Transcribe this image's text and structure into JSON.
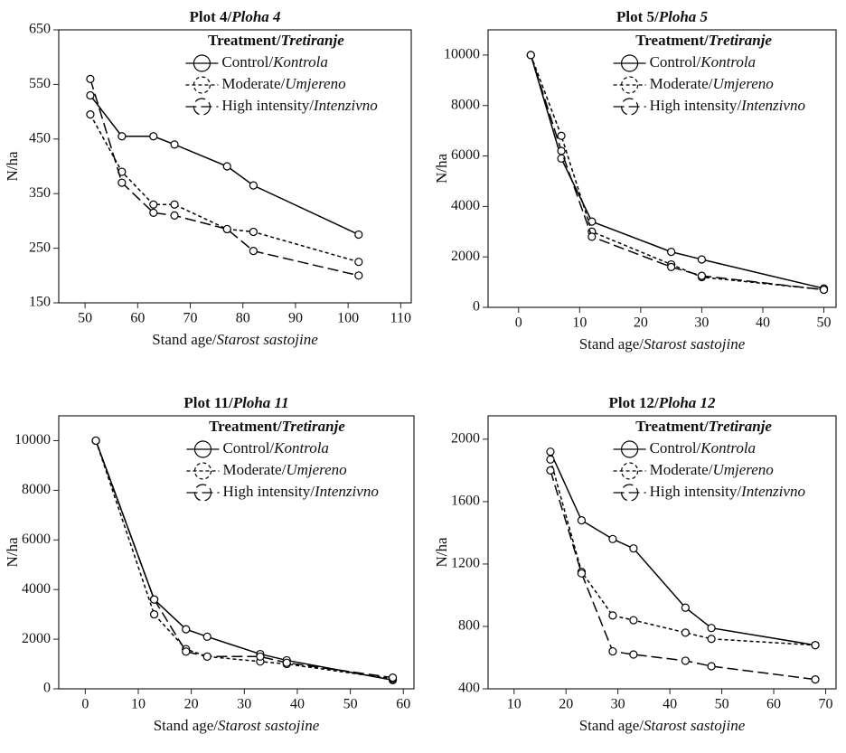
{
  "chart_data": [
    {
      "type": "line",
      "title": "Plot 4/Ploha 4",
      "x_label": "Stand age/Starost sastojine",
      "y_label": "N/ha",
      "legend_title": "Treatment/Tretiranje",
      "x": [
        51,
        57,
        63,
        67,
        77,
        82,
        102
      ],
      "series": [
        {
          "name": "Control/Kontrola",
          "color": "#000000",
          "dash": "solid",
          "values": [
            530,
            455,
            455,
            440,
            400,
            365,
            275
          ]
        },
        {
          "name": "Moderate/Umjereno",
          "color": "#000000",
          "dash": "dotted",
          "values": [
            495,
            390,
            330,
            330,
            285,
            280,
            225
          ]
        },
        {
          "name": "High intensity/Intenzivno",
          "color": "#000000",
          "dash": "dashed",
          "values": [
            560,
            370,
            315,
            310,
            285,
            245,
            200
          ]
        }
      ],
      "xlim": [
        45,
        112
      ],
      "xticks": [
        50,
        60,
        70,
        80,
        90,
        100,
        110
      ],
      "ylim": [
        150,
        650
      ],
      "yticks": [
        150,
        250,
        350,
        450,
        550,
        650
      ]
    },
    {
      "type": "line",
      "title": "Plot 5/Ploha 5",
      "x_label": "Stand age/Starost sastojine",
      "y_label": "N/ha",
      "legend_title": "Treatment/Tretiranje",
      "x": [
        2,
        7,
        12,
        25,
        30,
        50
      ],
      "series": [
        {
          "name": "Control/Kontrola",
          "color": "#000000",
          "dash": "solid",
          "values": [
            10000,
            5900,
            3400,
            2200,
            1900,
            750
          ]
        },
        {
          "name": "Moderate/Umjereno",
          "color": "#000000",
          "dash": "dotted",
          "values": [
            10000,
            6800,
            3000,
            1700,
            1200,
            700
          ]
        },
        {
          "name": "High intensity/Intenzivno",
          "color": "#000000",
          "dash": "dashed",
          "values": [
            10000,
            6200,
            2800,
            1600,
            1250,
            700
          ]
        }
      ],
      "xlim": [
        -5,
        52
      ],
      "xticks": [
        0,
        10,
        20,
        30,
        40,
        50
      ],
      "ylim": [
        0,
        11000
      ],
      "yticks": [
        0,
        2000,
        4000,
        6000,
        8000,
        10000
      ]
    },
    {
      "type": "line",
      "title": "Plot 11/Ploha 11",
      "x_label": "Stand age/Starost sastojine",
      "y_label": "N/ha",
      "legend_title": "Treatment/Tretiranje",
      "x": [
        2,
        13,
        19,
        23,
        33,
        38,
        58
      ],
      "series": [
        {
          "name": "Control/Kontrola",
          "color": "#000000",
          "dash": "solid",
          "values": [
            10000,
            3600,
            2400,
            2100,
            1400,
            1150,
            350
          ]
        },
        {
          "name": "Moderate/Umjereno",
          "color": "#000000",
          "dash": "dotted",
          "values": [
            10000,
            3000,
            1600,
            1300,
            1100,
            1000,
            400
          ]
        },
        {
          "name": "High intensity/Intenzivno",
          "color": "#000000",
          "dash": "dashed",
          "values": [
            10000,
            3600,
            1500,
            1300,
            1300,
            1050,
            450
          ]
        }
      ],
      "xlim": [
        -5,
        62
      ],
      "xticks": [
        0,
        10,
        20,
        30,
        40,
        50,
        60
      ],
      "ylim": [
        0,
        11000
      ],
      "yticks": [
        0,
        2000,
        4000,
        6000,
        8000,
        10000
      ]
    },
    {
      "type": "line",
      "title": "Plot 12/Ploha 12",
      "x_label": "Stand age/Starost sastojine",
      "y_label": "N/ha",
      "legend_title": "Treatment/Tretiranje",
      "x": [
        17,
        23,
        29,
        33,
        43,
        48,
        68
      ],
      "series": [
        {
          "name": "Control/Kontrola",
          "color": "#000000",
          "dash": "solid",
          "values": [
            1920,
            1480,
            1360,
            1300,
            920,
            790,
            680
          ]
        },
        {
          "name": "Moderate/Umjereno",
          "color": "#000000",
          "dash": "dotted",
          "values": [
            1870,
            1150,
            870,
            840,
            760,
            720,
            680
          ]
        },
        {
          "name": "High intensity/Intenzivno",
          "color": "#000000",
          "dash": "dashed",
          "values": [
            1800,
            1140,
            640,
            620,
            580,
            545,
            460
          ]
        }
      ],
      "xlim": [
        5,
        72
      ],
      "xticks": [
        10,
        20,
        30,
        40,
        50,
        60,
        70
      ],
      "ylim": [
        400,
        2150
      ],
      "yticks": [
        400,
        800,
        1200,
        1600,
        2000
      ]
    }
  ]
}
